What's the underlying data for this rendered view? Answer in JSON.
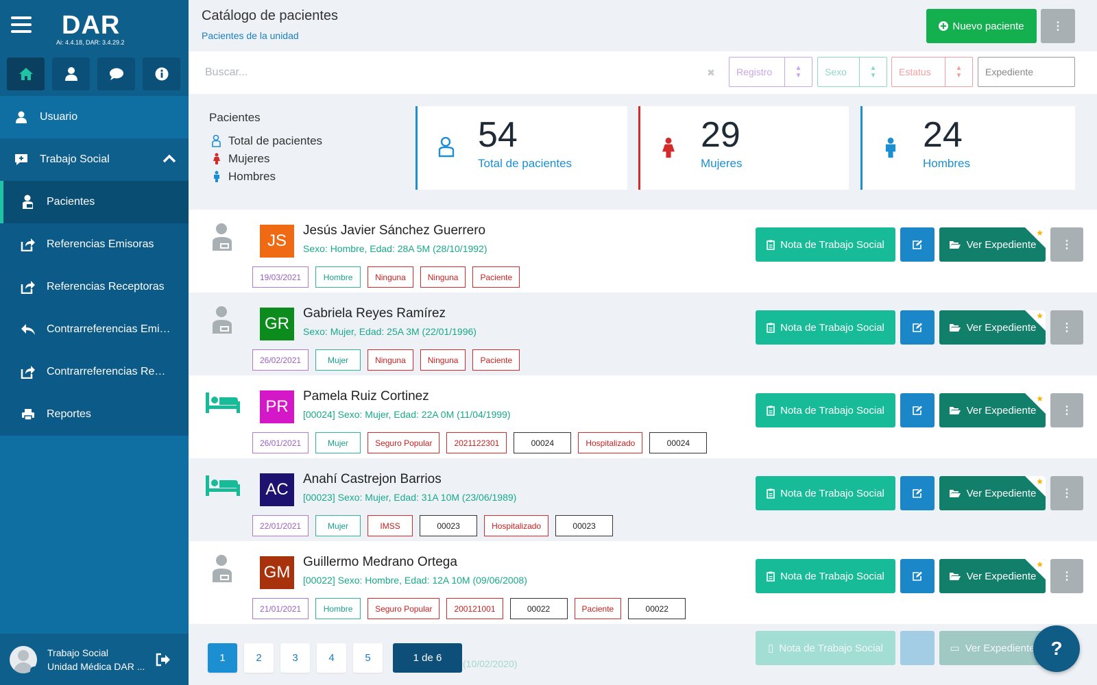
{
  "sidebar": {
    "logo": "DAR",
    "version": "Ai: 4.4.18, DAR: 3.4.29.2",
    "icon_buttons": [
      {
        "icon": "home-icon"
      },
      {
        "icon": "doctor-icon"
      },
      {
        "icon": "chat-icon"
      },
      {
        "icon": "info-icon"
      }
    ],
    "usuario_label": "Usuario",
    "section_label": "Trabajo Social",
    "items": [
      {
        "label": "Pacientes",
        "icon": "patient-icon"
      },
      {
        "label": "Referencias Emisoras",
        "icon": "share-icon"
      },
      {
        "label": "Referencias Receptoras",
        "icon": "share-icon"
      },
      {
        "label": "Contrarreferencias Emi…",
        "icon": "reply-icon"
      },
      {
        "label": "Contrarreferencias Re…",
        "icon": "share-icon"
      },
      {
        "label": "Reportes",
        "icon": "print-icon"
      }
    ],
    "footer": {
      "role": "Trabajo Social",
      "unit": "Unidad Médica DAR ..."
    }
  },
  "header": {
    "title": "Catálogo de pacientes",
    "subtitle": "Pacientes de la unidad",
    "new_button": "Nuevo paciente"
  },
  "filters": {
    "search_placeholder": "Buscar...",
    "registro": "Registro",
    "sexo": "Sexo",
    "estatus": "Estatus",
    "expediente": "Expediente",
    "colors": {
      "registro": "#c9a6e6",
      "sexo": "#8fd8c6",
      "estatus": "#f0a0a0"
    }
  },
  "stats": {
    "legend_title": "Pacientes",
    "legend": [
      "Total de pacientes",
      "Mujeres",
      "Hombres"
    ],
    "cards": [
      {
        "value": "54",
        "label": "Total de pacientes",
        "color": "#1b8fd2"
      },
      {
        "value": "29",
        "label": "Mujeres",
        "color": "#d42a2a"
      },
      {
        "value": "24",
        "label": "Hombres",
        "color": "#1b8fd2"
      }
    ]
  },
  "actions": {
    "nota": "Nota de Trabajo Social",
    "expediente": "Ver Expediente"
  },
  "patients": [
    {
      "initials": "JS",
      "color": "#f06a14",
      "status_icon": "patient-icon",
      "name": "Jesús Javier Sánchez Guerrero",
      "info": "Sexo: Hombre, Edad: 28A 5M (28/10/1992)",
      "tags": [
        {
          "text": "19/03/2021",
          "style": "purple"
        },
        {
          "text": "Hombre",
          "style": "green"
        },
        {
          "text": "Ninguna",
          "style": "red"
        },
        {
          "text": "Ninguna",
          "style": "red"
        },
        {
          "text": "Paciente",
          "style": "red"
        }
      ]
    },
    {
      "initials": "GR",
      "color": "#0c8c1c",
      "status_icon": "patient-icon",
      "name": "Gabriela Reyes Ramírez",
      "info": "Sexo: Mujer, Edad: 25A 3M (22/01/1996)",
      "tags": [
        {
          "text": "26/02/2021",
          "style": "purple"
        },
        {
          "text": "Mujer",
          "style": "green"
        },
        {
          "text": "Ninguna",
          "style": "red"
        },
        {
          "text": "Ninguna",
          "style": "red"
        },
        {
          "text": "Paciente",
          "style": "red"
        }
      ]
    },
    {
      "initials": "PR",
      "color": "#d418c8",
      "status_icon": "bed-icon",
      "name": "Pamela Ruiz Cortinez",
      "info": "[00024] Sexo: Mujer, Edad: 22A 0M (11/04/1999)",
      "tags": [
        {
          "text": "26/01/2021",
          "style": "purple"
        },
        {
          "text": "Mujer",
          "style": "green"
        },
        {
          "text": "Seguro Popular",
          "style": "red"
        },
        {
          "text": "2021122301",
          "style": "red"
        },
        {
          "text": "00024",
          "style": "dark"
        },
        {
          "text": "Hospitalizado",
          "style": "red"
        },
        {
          "text": "00024",
          "style": "dark"
        }
      ]
    },
    {
      "initials": "AC",
      "color": "#1e1270",
      "status_icon": "bed-icon",
      "name": "Anahí Castrejon Barrios",
      "info": "[00023] Sexo: Mujer, Edad: 31A 10M (23/06/1989)",
      "tags": [
        {
          "text": "22/01/2021",
          "style": "purple"
        },
        {
          "text": "Mujer",
          "style": "green"
        },
        {
          "text": "IMSS",
          "style": "red"
        },
        {
          "text": "00023",
          "style": "dark"
        },
        {
          "text": "Hospitalizado",
          "style": "red"
        },
        {
          "text": "00023",
          "style": "dark"
        }
      ]
    },
    {
      "initials": "GM",
      "color": "#a8320c",
      "status_icon": "patient-icon",
      "name": "Guillermo Medrano Ortega",
      "info": "[00022] Sexo: Hombre, Edad: 12A 10M (09/06/2008)",
      "tags": [
        {
          "text": "21/01/2021",
          "style": "purple"
        },
        {
          "text": "Hombre",
          "style": "green"
        },
        {
          "text": "Seguro Popular",
          "style": "red"
        },
        {
          "text": "200121001",
          "style": "red"
        },
        {
          "text": "00022",
          "style": "dark"
        },
        {
          "text": "Paciente",
          "style": "red"
        },
        {
          "text": "00022",
          "style": "dark"
        }
      ]
    }
  ],
  "faded_row": {
    "info_partial": "(10/02/2020)"
  },
  "pagination": {
    "pages": [
      "1",
      "2",
      "3",
      "4",
      "5"
    ],
    "current": "1",
    "info": "1 de 6"
  },
  "help_button": "?"
}
